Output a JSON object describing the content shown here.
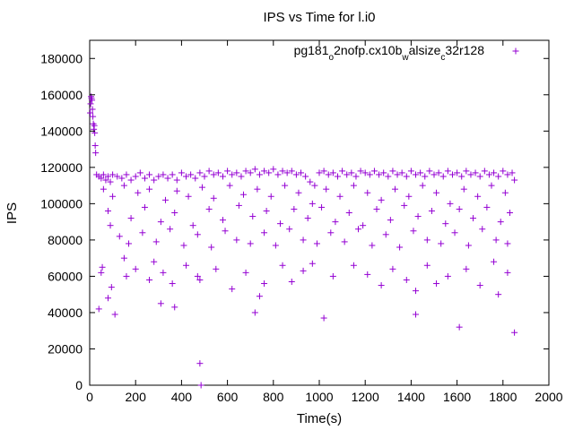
{
  "chart_data": {
    "type": "scatter",
    "title": "IPS vs Time for l.i0",
    "xlabel": "Time(s)",
    "ylabel": "IPS",
    "xlim": [
      0,
      2000
    ],
    "ylim": [
      0,
      190000
    ],
    "x_ticks": [
      0,
      200,
      400,
      600,
      800,
      1000,
      1200,
      1400,
      1600,
      1800,
      2000
    ],
    "y_ticks": [
      0,
      20000,
      40000,
      60000,
      80000,
      100000,
      120000,
      140000,
      160000,
      180000
    ],
    "grid": false,
    "legend_position": "top-right",
    "marker": "plus",
    "color": "#9400d3",
    "series": [
      {
        "legend": {
          "base1": "pg181",
          "sub1": "o",
          "base2": "2nofp.cx10b",
          "sub2": "w",
          "base3": "alsize",
          "sub3": "c",
          "base4": "32r128"
        },
        "points": [
          [
            2,
            150000
          ],
          [
            4,
            155000
          ],
          [
            6,
            159000
          ],
          [
            8,
            158000
          ],
          [
            10,
            157000
          ],
          [
            12,
            152000
          ],
          [
            14,
            148000
          ],
          [
            16,
            144000
          ],
          [
            18,
            141000
          ],
          [
            20,
            143000
          ],
          [
            22,
            139000
          ],
          [
            24,
            132000
          ],
          [
            26,
            128000
          ],
          [
            30,
            116000
          ],
          [
            40,
            115000
          ],
          [
            50,
            114000
          ],
          [
            60,
            116000
          ],
          [
            70,
            113000
          ],
          [
            80,
            115000
          ],
          [
            90,
            112000
          ],
          [
            100,
            116000
          ],
          [
            120,
            115000
          ],
          [
            140,
            114000
          ],
          [
            160,
            116000
          ],
          [
            180,
            113000
          ],
          [
            200,
            115000
          ],
          [
            220,
            117000
          ],
          [
            240,
            114000
          ],
          [
            260,
            116000
          ],
          [
            280,
            113000
          ],
          [
            300,
            115000
          ],
          [
            320,
            116000
          ],
          [
            340,
            114000
          ],
          [
            360,
            116000
          ],
          [
            380,
            113000
          ],
          [
            400,
            117000
          ],
          [
            420,
            115000
          ],
          [
            440,
            116000
          ],
          [
            460,
            114000
          ],
          [
            480,
            117000
          ],
          [
            500,
            115000
          ],
          [
            520,
            118000
          ],
          [
            540,
            116000
          ],
          [
            560,
            117000
          ],
          [
            580,
            115000
          ],
          [
            600,
            118000
          ],
          [
            620,
            116000
          ],
          [
            640,
            117000
          ],
          [
            660,
            115000
          ],
          [
            680,
            118000
          ],
          [
            700,
            117000
          ],
          [
            720,
            119000
          ],
          [
            740,
            116000
          ],
          [
            760,
            118000
          ],
          [
            780,
            117000
          ],
          [
            800,
            119000
          ],
          [
            820,
            116000
          ],
          [
            840,
            118000
          ],
          [
            860,
            117000
          ],
          [
            880,
            118000
          ],
          [
            900,
            116000
          ],
          [
            920,
            117000
          ],
          [
            940,
            115000
          ],
          [
            960,
            112000
          ],
          [
            980,
            110000
          ],
          [
            1000,
            117000
          ],
          [
            1020,
            118000
          ],
          [
            1040,
            116000
          ],
          [
            1060,
            117000
          ],
          [
            1080,
            115000
          ],
          [
            1100,
            118000
          ],
          [
            1120,
            116000
          ],
          [
            1140,
            117000
          ],
          [
            1160,
            115000
          ],
          [
            1180,
            118000
          ],
          [
            1200,
            117000
          ],
          [
            1220,
            116000
          ],
          [
            1240,
            118000
          ],
          [
            1260,
            116000
          ],
          [
            1280,
            117000
          ],
          [
            1300,
            115000
          ],
          [
            1320,
            118000
          ],
          [
            1340,
            116000
          ],
          [
            1360,
            117000
          ],
          [
            1380,
            115000
          ],
          [
            1400,
            118000
          ],
          [
            1420,
            116000
          ],
          [
            1440,
            117000
          ],
          [
            1460,
            115000
          ],
          [
            1480,
            118000
          ],
          [
            1500,
            116000
          ],
          [
            1520,
            117000
          ],
          [
            1540,
            115000
          ],
          [
            1560,
            118000
          ],
          [
            1580,
            116000
          ],
          [
            1600,
            117000
          ],
          [
            1620,
            115000
          ],
          [
            1640,
            118000
          ],
          [
            1660,
            116000
          ],
          [
            1680,
            117000
          ],
          [
            1700,
            115000
          ],
          [
            1720,
            118000
          ],
          [
            1740,
            116000
          ],
          [
            1760,
            117000
          ],
          [
            1780,
            115000
          ],
          [
            1800,
            118000
          ],
          [
            1820,
            116000
          ],
          [
            1840,
            117000
          ],
          [
            1850,
            113000
          ],
          [
            60,
            108000
          ],
          [
            100,
            104000
          ],
          [
            150,
            110000
          ],
          [
            210,
            106000
          ],
          [
            260,
            108000
          ],
          [
            330,
            102000
          ],
          [
            380,
            107000
          ],
          [
            430,
            104000
          ],
          [
            490,
            109000
          ],
          [
            540,
            103000
          ],
          [
            610,
            110000
          ],
          [
            670,
            105000
          ],
          [
            730,
            108000
          ],
          [
            790,
            104000
          ],
          [
            850,
            110000
          ],
          [
            910,
            106000
          ],
          [
            970,
            100000
          ],
          [
            1030,
            108000
          ],
          [
            1090,
            104000
          ],
          [
            1150,
            110000
          ],
          [
            1210,
            106000
          ],
          [
            1270,
            102000
          ],
          [
            1330,
            108000
          ],
          [
            1390,
            104000
          ],
          [
            1450,
            110000
          ],
          [
            1510,
            106000
          ],
          [
            1570,
            100000
          ],
          [
            1630,
            108000
          ],
          [
            1690,
            104000
          ],
          [
            1750,
            110000
          ],
          [
            1810,
            106000
          ],
          [
            80,
            96000
          ],
          [
            180,
            92000
          ],
          [
            240,
            98000
          ],
          [
            310,
            90000
          ],
          [
            370,
            95000
          ],
          [
            450,
            88000
          ],
          [
            520,
            97000
          ],
          [
            580,
            91000
          ],
          [
            650,
            99000
          ],
          [
            710,
            93000
          ],
          [
            770,
            96000
          ],
          [
            830,
            89000
          ],
          [
            890,
            97000
          ],
          [
            950,
            92000
          ],
          [
            1010,
            98000
          ],
          [
            1070,
            90000
          ],
          [
            1130,
            95000
          ],
          [
            1190,
            88000
          ],
          [
            1250,
            97000
          ],
          [
            1310,
            91000
          ],
          [
            1370,
            99000
          ],
          [
            1430,
            93000
          ],
          [
            1490,
            96000
          ],
          [
            1550,
            89000
          ],
          [
            1610,
            97000
          ],
          [
            1670,
            92000
          ],
          [
            1730,
            98000
          ],
          [
            1790,
            90000
          ],
          [
            1830,
            95000
          ],
          [
            90,
            88000
          ],
          [
            130,
            82000
          ],
          [
            170,
            78000
          ],
          [
            230,
            84000
          ],
          [
            290,
            79000
          ],
          [
            350,
            86000
          ],
          [
            410,
            77000
          ],
          [
            470,
            83000
          ],
          [
            530,
            76000
          ],
          [
            590,
            85000
          ],
          [
            640,
            80000
          ],
          [
            700,
            78000
          ],
          [
            760,
            84000
          ],
          [
            810,
            77000
          ],
          [
            870,
            86000
          ],
          [
            930,
            80000
          ],
          [
            990,
            78000
          ],
          [
            1050,
            84000
          ],
          [
            1110,
            79000
          ],
          [
            1170,
            86000
          ],
          [
            1230,
            77000
          ],
          [
            1290,
            83000
          ],
          [
            1350,
            76000
          ],
          [
            1410,
            85000
          ],
          [
            1470,
            80000
          ],
          [
            1530,
            78000
          ],
          [
            1590,
            84000
          ],
          [
            1650,
            77000
          ],
          [
            1710,
            86000
          ],
          [
            1770,
            80000
          ],
          [
            1820,
            78000
          ],
          [
            50,
            62000
          ],
          [
            55,
            65000
          ],
          [
            80,
            48000
          ],
          [
            95,
            54000
          ],
          [
            150,
            70000
          ],
          [
            160,
            60000
          ],
          [
            200,
            64000
          ],
          [
            260,
            58000
          ],
          [
            280,
            68000
          ],
          [
            320,
            62000
          ],
          [
            360,
            56000
          ],
          [
            420,
            66000
          ],
          [
            470,
            60000
          ],
          [
            480,
            58000
          ],
          [
            550,
            64000
          ],
          [
            620,
            53000
          ],
          [
            680,
            62000
          ],
          [
            740,
            49000
          ],
          [
            760,
            56000
          ],
          [
            840,
            66000
          ],
          [
            880,
            57000
          ],
          [
            930,
            63000
          ],
          [
            970,
            67000
          ],
          [
            1060,
            60000
          ],
          [
            1150,
            66000
          ],
          [
            1210,
            61000
          ],
          [
            1270,
            55000
          ],
          [
            1320,
            64000
          ],
          [
            1380,
            58000
          ],
          [
            1420,
            52000
          ],
          [
            1470,
            66000
          ],
          [
            1510,
            56000
          ],
          [
            1560,
            60000
          ],
          [
            1640,
            64000
          ],
          [
            1700,
            55000
          ],
          [
            1760,
            68000
          ],
          [
            1820,
            62000
          ],
          [
            40,
            42000
          ],
          [
            110,
            39000
          ],
          [
            370,
            43000
          ],
          [
            720,
            40000
          ],
          [
            1020,
            37000
          ],
          [
            1420,
            39000
          ],
          [
            1610,
            32000
          ],
          [
            480,
            12000
          ],
          [
            485,
            0
          ],
          [
            1850,
            29000
          ],
          [
            310,
            45000
          ],
          [
            1780,
            50000
          ]
        ]
      }
    ]
  }
}
